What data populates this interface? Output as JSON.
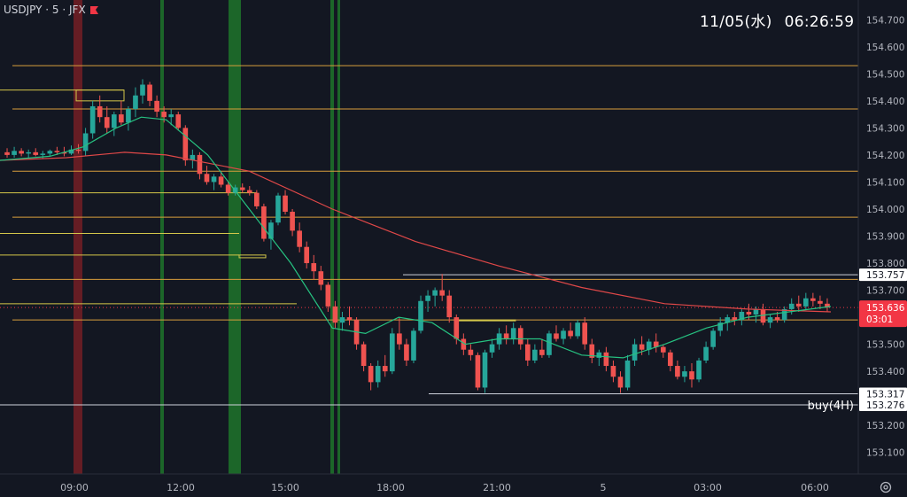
{
  "header": {
    "symbol": "USDJPY · 5 · JFX",
    "date": "11/05(水)",
    "time": "06:26:59"
  },
  "colors": {
    "background": "#131722",
    "up_candle": "#26a69a",
    "down_candle": "#ef5350",
    "ma_fast": "#26c281",
    "ma_slow": "#e04848",
    "hline_orange": "#d89e3c",
    "hline_yellow": "#d4c74a",
    "hline_white": "#cfd3dc",
    "vband_green": "#1f7a2c",
    "vband_red": "#7a1f26",
    "current_price_bg": "#f23645"
  },
  "chart_data": {
    "type": "candlestick",
    "instrument": "USDJPY",
    "timeframe": "5",
    "y_axis": {
      "range": [
        153.05,
        154.75
      ],
      "tick_labels": [
        "154.700",
        "154.600",
        "154.500",
        "154.400",
        "154.300",
        "154.200",
        "154.100",
        "154.000",
        "153.900",
        "153.800",
        "153.700",
        "153.500",
        "153.400",
        "153.300",
        "153.200",
        "153.100"
      ]
    },
    "x_axis": {
      "tick_labels": [
        "09:00",
        "12:00",
        "15:00",
        "18:00",
        "21:00",
        "5",
        "03:00",
        "06:00"
      ]
    },
    "price_labels": [
      {
        "text": "153.757",
        "value": 153.757,
        "style": "white"
      },
      {
        "text": "153.636",
        "value": 153.636,
        "style": "current",
        "countdown": "03:01"
      },
      {
        "text": "153.317",
        "value": 153.317,
        "style": "white"
      },
      {
        "text": "153.276",
        "value": 153.276,
        "style": "white"
      }
    ],
    "annotations": [
      {
        "text": "buy(4H)",
        "value": 153.276
      }
    ],
    "horizontal_levels_orange": [
      154.53,
      154.37,
      154.14,
      153.97,
      153.74,
      153.59
    ],
    "horizontal_levels_yellow": [
      154.44,
      154.06,
      153.91,
      153.83,
      153.65
    ],
    "vertical_bands": [
      {
        "time": "08:00",
        "color": "red"
      },
      {
        "time": "11:40",
        "color": "green"
      },
      {
        "time": "13:20",
        "color": "green"
      },
      {
        "time": "16:10",
        "color": "green"
      },
      {
        "time": "16:25",
        "color": "green"
      }
    ],
    "candles": [
      [
        154.21,
        154.225,
        154.19,
        154.2
      ],
      [
        154.2,
        154.23,
        154.19,
        154.215
      ],
      [
        154.215,
        154.225,
        154.195,
        154.205
      ],
      [
        154.205,
        154.22,
        154.19,
        154.21
      ],
      [
        154.21,
        154.225,
        154.195,
        154.2
      ],
      [
        154.2,
        154.215,
        154.185,
        154.205
      ],
      [
        154.205,
        154.22,
        154.195,
        154.215
      ],
      [
        154.215,
        154.23,
        154.2,
        154.21
      ],
      [
        154.21,
        154.23,
        154.195,
        154.205
      ],
      [
        154.205,
        154.235,
        154.2,
        154.22
      ],
      [
        154.22,
        154.24,
        154.205,
        154.215
      ],
      [
        154.215,
        154.3,
        154.195,
        154.28
      ],
      [
        154.28,
        154.4,
        154.26,
        154.38
      ],
      [
        154.38,
        154.42,
        154.32,
        154.34
      ],
      [
        154.34,
        154.38,
        154.28,
        154.3
      ],
      [
        154.3,
        154.36,
        154.27,
        154.35
      ],
      [
        154.35,
        154.4,
        154.31,
        154.32
      ],
      [
        154.32,
        154.38,
        154.29,
        154.37
      ],
      [
        154.37,
        154.45,
        154.34,
        154.42
      ],
      [
        154.42,
        154.48,
        154.39,
        154.46
      ],
      [
        154.46,
        154.47,
        154.38,
        154.4
      ],
      [
        154.4,
        154.42,
        154.34,
        154.36
      ],
      [
        154.36,
        154.38,
        154.32,
        154.34
      ],
      [
        154.34,
        154.37,
        154.31,
        154.35
      ],
      [
        154.35,
        154.36,
        154.29,
        154.3
      ],
      [
        154.3,
        154.31,
        154.16,
        154.18
      ],
      [
        154.18,
        154.22,
        154.15,
        154.2
      ],
      [
        154.2,
        154.21,
        154.11,
        154.13
      ],
      [
        154.13,
        154.16,
        154.09,
        154.1
      ],
      [
        154.1,
        154.13,
        154.07,
        154.12
      ],
      [
        154.12,
        154.14,
        154.08,
        154.09
      ],
      [
        154.09,
        154.1,
        154.05,
        154.06
      ],
      [
        154.06,
        154.09,
        154.05,
        154.08
      ],
      [
        154.08,
        154.095,
        154.06,
        154.07
      ],
      [
        154.07,
        154.085,
        154.05,
        154.06
      ],
      [
        154.06,
        154.07,
        154.0,
        154.01
      ],
      [
        154.01,
        154.02,
        153.88,
        153.89
      ],
      [
        153.89,
        153.96,
        153.85,
        153.95
      ],
      [
        153.95,
        154.06,
        153.94,
        154.05
      ],
      [
        154.05,
        154.07,
        153.98,
        153.99
      ],
      [
        153.99,
        154.0,
        153.9,
        153.92
      ],
      [
        153.92,
        153.95,
        153.84,
        153.86
      ],
      [
        153.86,
        153.88,
        153.78,
        153.8
      ],
      [
        153.8,
        153.83,
        153.74,
        153.77
      ],
      [
        153.77,
        153.79,
        153.7,
        153.72
      ],
      [
        153.72,
        153.73,
        153.62,
        153.64
      ],
      [
        153.64,
        153.66,
        153.56,
        153.58
      ],
      [
        153.58,
        153.62,
        153.55,
        153.6
      ],
      [
        153.6,
        153.64,
        153.57,
        153.59
      ],
      [
        153.59,
        153.6,
        153.48,
        153.5
      ],
      [
        153.5,
        153.51,
        153.4,
        153.42
      ],
      [
        153.42,
        153.43,
        153.33,
        153.36
      ],
      [
        153.36,
        153.44,
        153.34,
        153.42
      ],
      [
        153.42,
        153.46,
        153.38,
        153.4
      ],
      [
        153.4,
        153.56,
        153.39,
        153.54
      ],
      [
        153.54,
        153.6,
        153.48,
        153.5
      ],
      [
        153.5,
        153.52,
        153.42,
        153.44
      ],
      [
        153.44,
        153.56,
        153.43,
        153.55
      ],
      [
        153.55,
        153.68,
        153.54,
        153.66
      ],
      [
        153.66,
        153.7,
        153.62,
        153.68
      ],
      [
        153.68,
        153.71,
        153.64,
        153.7
      ],
      [
        153.7,
        153.76,
        153.66,
        153.68
      ],
      [
        153.68,
        153.7,
        153.58,
        153.6
      ],
      [
        153.6,
        153.61,
        153.5,
        153.52
      ],
      [
        153.52,
        153.54,
        153.46,
        153.48
      ],
      [
        153.48,
        153.5,
        153.44,
        153.46
      ],
      [
        153.46,
        153.47,
        153.33,
        153.34
      ],
      [
        153.34,
        153.48,
        153.32,
        153.47
      ],
      [
        153.47,
        153.52,
        153.45,
        153.5
      ],
      [
        153.5,
        153.56,
        153.48,
        153.54
      ],
      [
        153.54,
        153.57,
        153.5,
        153.52
      ],
      [
        153.52,
        153.58,
        153.5,
        153.56
      ],
      [
        153.56,
        153.57,
        153.48,
        153.5
      ],
      [
        153.5,
        153.52,
        153.42,
        153.44
      ],
      [
        153.44,
        153.5,
        153.43,
        153.48
      ],
      [
        153.48,
        153.52,
        153.45,
        153.46
      ],
      [
        153.46,
        153.55,
        153.45,
        153.54
      ],
      [
        153.54,
        153.57,
        153.51,
        153.52
      ],
      [
        153.52,
        153.56,
        153.5,
        153.55
      ],
      [
        153.55,
        153.58,
        153.52,
        153.53
      ],
      [
        153.53,
        153.59,
        153.52,
        153.58
      ],
      [
        153.58,
        153.6,
        153.48,
        153.5
      ],
      [
        153.5,
        153.52,
        153.43,
        153.45
      ],
      [
        153.45,
        153.48,
        153.42,
        153.47
      ],
      [
        153.47,
        153.49,
        153.4,
        153.42
      ],
      [
        153.42,
        153.44,
        153.36,
        153.38
      ],
      [
        153.38,
        153.4,
        153.32,
        153.34
      ],
      [
        153.34,
        153.46,
        153.33,
        153.44
      ],
      [
        153.44,
        153.52,
        153.42,
        153.5
      ],
      [
        153.5,
        153.53,
        153.46,
        153.48
      ],
      [
        153.48,
        153.52,
        153.46,
        153.51
      ],
      [
        153.51,
        153.54,
        153.47,
        153.49
      ],
      [
        153.49,
        153.5,
        153.45,
        153.47
      ],
      [
        153.47,
        153.48,
        153.4,
        153.42
      ],
      [
        153.42,
        153.44,
        153.37,
        153.38
      ],
      [
        153.38,
        153.42,
        153.36,
        153.4
      ],
      [
        153.4,
        153.43,
        153.34,
        153.37
      ],
      [
        153.37,
        153.45,
        153.36,
        153.44
      ],
      [
        153.44,
        153.51,
        153.43,
        153.49
      ],
      [
        153.49,
        153.56,
        153.48,
        153.55
      ],
      [
        153.55,
        153.6,
        153.53,
        153.58
      ],
      [
        153.58,
        153.61,
        153.55,
        153.6
      ],
      [
        153.6,
        153.62,
        153.57,
        153.59
      ],
      [
        153.59,
        153.63,
        153.57,
        153.62
      ],
      [
        153.62,
        153.65,
        153.59,
        153.61
      ],
      [
        153.61,
        153.64,
        153.58,
        153.63
      ],
      [
        153.63,
        153.65,
        153.57,
        153.58
      ],
      [
        153.58,
        153.61,
        153.56,
        153.6
      ],
      [
        153.6,
        153.62,
        153.58,
        153.59
      ],
      [
        153.59,
        153.64,
        153.58,
        153.63
      ],
      [
        153.63,
        153.67,
        153.61,
        153.65
      ],
      [
        153.65,
        153.68,
        153.62,
        153.64
      ],
      [
        153.64,
        153.69,
        153.63,
        153.67
      ],
      [
        153.67,
        153.69,
        153.64,
        153.66
      ],
      [
        153.66,
        153.68,
        153.63,
        153.65
      ],
      [
        153.65,
        153.67,
        153.62,
        153.636
      ]
    ],
    "ma_fast_points": [
      [
        0,
        154.18
      ],
      [
        0.06,
        154.195
      ],
      [
        0.1,
        154.23
      ],
      [
        0.14,
        154.3
      ],
      [
        0.17,
        154.34
      ],
      [
        0.2,
        154.33
      ],
      [
        0.25,
        154.2
      ],
      [
        0.3,
        154.0
      ],
      [
        0.35,
        153.8
      ],
      [
        0.4,
        153.56
      ],
      [
        0.44,
        153.54
      ],
      [
        0.48,
        153.6
      ],
      [
        0.52,
        153.58
      ],
      [
        0.56,
        153.5
      ],
      [
        0.6,
        153.52
      ],
      [
        0.65,
        153.52
      ],
      [
        0.7,
        153.46
      ],
      [
        0.75,
        153.45
      ],
      [
        0.8,
        153.5
      ],
      [
        0.85,
        153.56
      ],
      [
        0.9,
        153.6
      ],
      [
        0.95,
        153.62
      ],
      [
        1.0,
        153.64
      ]
    ],
    "ma_slow_points": [
      [
        0,
        154.18
      ],
      [
        0.08,
        154.19
      ],
      [
        0.15,
        154.21
      ],
      [
        0.2,
        154.2
      ],
      [
        0.3,
        154.14
      ],
      [
        0.4,
        154.0
      ],
      [
        0.5,
        153.88
      ],
      [
        0.6,
        153.79
      ],
      [
        0.7,
        153.71
      ],
      [
        0.8,
        153.65
      ],
      [
        0.9,
        153.63
      ],
      [
        1.0,
        153.62
      ]
    ]
  }
}
